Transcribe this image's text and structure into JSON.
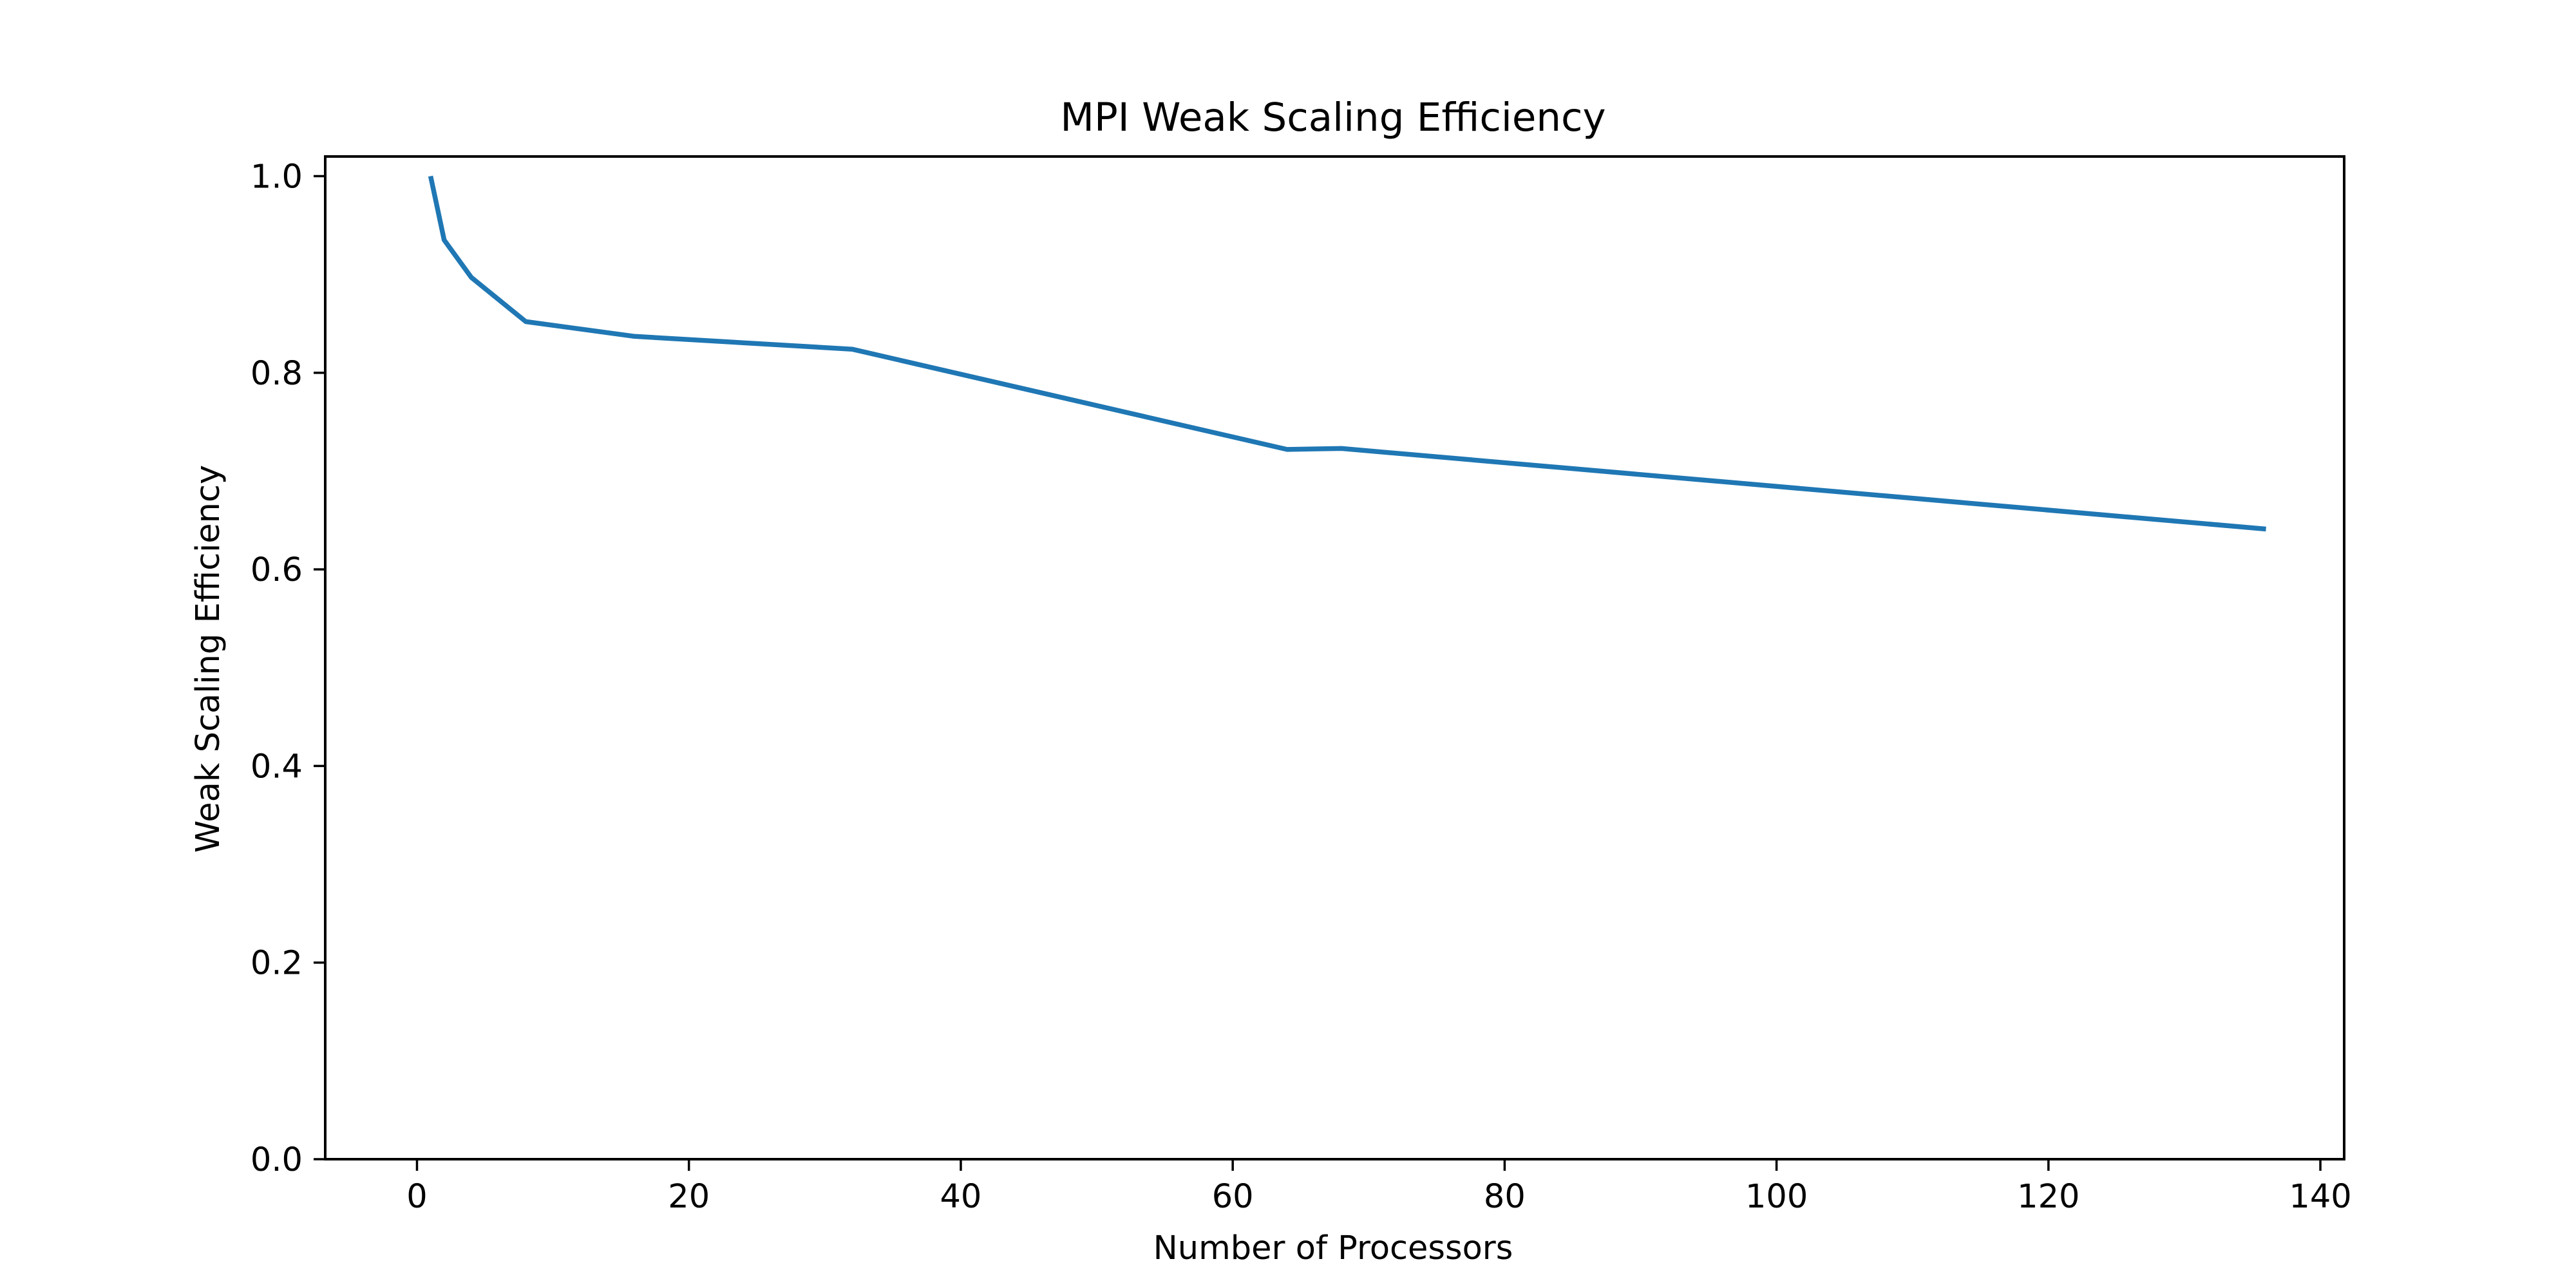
{
  "chart_data": {
    "type": "line",
    "title": "MPI Weak Scaling Efficiency",
    "xlabel": "Number of Processors",
    "ylabel": "Weak Scaling Efficiency",
    "xlim": [
      -6.75,
      141.75
    ],
    "ylim": [
      0.0,
      1.02
    ],
    "xticks": [
      0,
      20,
      40,
      60,
      80,
      100,
      120,
      140
    ],
    "xtick_labels": [
      "0",
      "20",
      "40",
      "60",
      "80",
      "100",
      "120",
      "140"
    ],
    "yticks": [
      0.0,
      0.2,
      0.4,
      0.6,
      0.8,
      1.0
    ],
    "ytick_labels": [
      "0.0",
      "0.2",
      "0.4",
      "0.6",
      "0.8",
      "1.0"
    ],
    "grid": false,
    "legend": "none",
    "series": [
      {
        "color": "#1f77b4",
        "x": [
          1,
          2,
          4,
          8,
          16,
          32,
          64,
          68,
          136
        ],
        "y": [
          1.0,
          0.935,
          0.897,
          0.852,
          0.837,
          0.824,
          0.722,
          0.723,
          0.641
        ]
      }
    ]
  }
}
